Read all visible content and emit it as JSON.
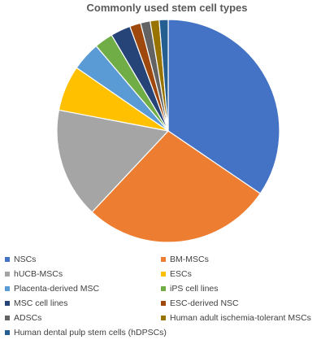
{
  "chart_data": {
    "type": "pie",
    "title": "Commonly used stem cell types",
    "legend_position": "bottom",
    "categories": [
      "NSCs",
      "BM-MSCs",
      "hUCB-MSCs",
      "ESCs",
      "Placenta-derived MSC",
      "iPS cell lines",
      "MSC cell lines",
      "ESC-derived NSC",
      "ADSCs",
      "Human adult ischemia-tolerant MSCs",
      "Human dental pulp stem cells (hDPSCs)"
    ],
    "values": [
      34.5,
      27.5,
      16.0,
      6.6,
      4.2,
      2.7,
      2.9,
      1.6,
      1.4,
      1.3,
      1.3
    ],
    "colors": [
      "#4472C4",
      "#ED7D31",
      "#A5A5A5",
      "#FFC000",
      "#5B9BD5",
      "#70AD47",
      "#264478",
      "#9E480E",
      "#636363",
      "#997300",
      "#255E91"
    ]
  }
}
